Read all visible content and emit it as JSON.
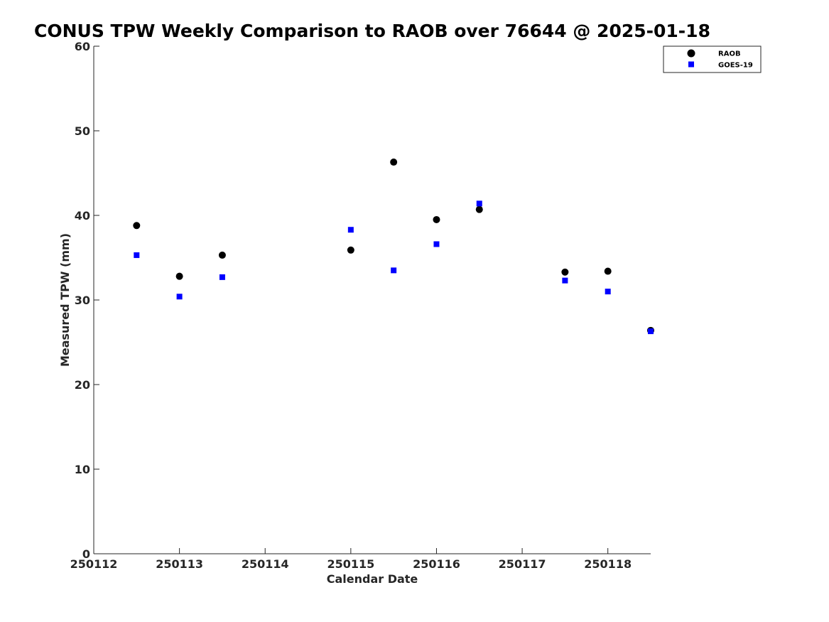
{
  "chart_data": {
    "type": "scatter",
    "title": "CONUS TPW Weekly Comparison to RAOB over 76644 @ 2025-01-18",
    "xlabel": "Calendar Date",
    "ylabel": "Measured TPW (mm)",
    "xlim": [
      250112,
      250118.5
    ],
    "ylim": [
      0,
      60
    ],
    "xticks": [
      250112,
      250113,
      250114,
      250115,
      250116,
      250117,
      250118
    ],
    "xtick_labels": [
      "250112",
      "250113",
      "250114",
      "250115",
      "250116",
      "250117",
      "250118"
    ],
    "yticks": [
      0,
      10,
      20,
      30,
      40,
      50,
      60
    ],
    "ytick_labels": [
      "0",
      "10",
      "20",
      "30",
      "40",
      "50",
      "60"
    ],
    "grid": false,
    "legend": "top-right",
    "series": [
      {
        "name": "RAOB",
        "marker": "circle",
        "color": "#000000",
        "points": [
          [
            250112.5,
            38.8
          ],
          [
            250113,
            32.8
          ],
          [
            250113.5,
            35.3
          ],
          [
            250115,
            35.9
          ],
          [
            250115.5,
            46.3
          ],
          [
            250116,
            39.5
          ],
          [
            250116.5,
            40.7
          ],
          [
            250117.5,
            33.3
          ],
          [
            250118,
            33.4
          ],
          [
            250118.5,
            26.4
          ]
        ]
      },
      {
        "name": "GOES-19",
        "marker": "square",
        "color": "#0000ff",
        "points": [
          [
            250112.5,
            35.3
          ],
          [
            250113,
            30.4
          ],
          [
            250113.5,
            32.7
          ],
          [
            250115,
            38.3
          ],
          [
            250115.5,
            33.5
          ],
          [
            250116,
            36.6
          ],
          [
            250116.5,
            41.4
          ],
          [
            250117.5,
            32.3
          ],
          [
            250118,
            31.0
          ],
          [
            250118.5,
            26.3
          ]
        ]
      }
    ]
  }
}
